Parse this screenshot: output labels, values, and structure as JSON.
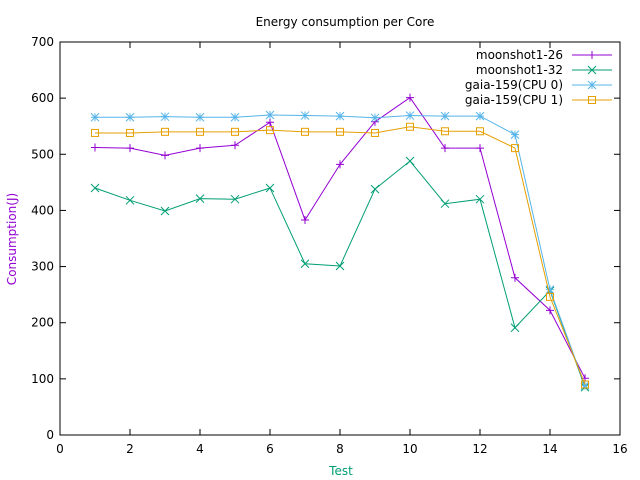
{
  "chart_data": {
    "type": "line",
    "title": "Energy consumption per Core",
    "xlabel": "Test",
    "ylabel": "Consumption(J)",
    "xlabel_color": "#009e73",
    "ylabel_color": "#9400d3",
    "xlim": [
      0,
      16
    ],
    "ylim": [
      0,
      700
    ],
    "xticks": [
      0,
      2,
      4,
      6,
      8,
      10,
      12,
      14,
      16
    ],
    "yticks": [
      0,
      100,
      200,
      300,
      400,
      500,
      600,
      700
    ],
    "grid": false,
    "legend_position": "top-right",
    "x": [
      1,
      2,
      3,
      4,
      5,
      6,
      7,
      8,
      9,
      10,
      11,
      12,
      13,
      14,
      15
    ],
    "series": [
      {
        "name": "moonshot1-26",
        "color": "#9400d3",
        "marker": "plus",
        "values": [
          512,
          511,
          498,
          511,
          516,
          557,
          383,
          482,
          558,
          601,
          511,
          511,
          280,
          222,
          101
        ]
      },
      {
        "name": "moonshot1-32",
        "color": "#009e73",
        "marker": "cross",
        "values": [
          440,
          418,
          399,
          421,
          420,
          440,
          305,
          301,
          438,
          488,
          412,
          420,
          191,
          257,
          85
        ]
      },
      {
        "name": "gaia-159(CPU 0)",
        "color": "#56b4e9",
        "marker": "star",
        "values": [
          566,
          566,
          567,
          566,
          566,
          570,
          569,
          568,
          565,
          569,
          568,
          568,
          535,
          259,
          88
        ]
      },
      {
        "name": "gaia-159(CPU 1)",
        "color": "#e69f00",
        "marker": "square",
        "values": [
          538,
          538,
          540,
          540,
          540,
          543,
          540,
          540,
          538,
          549,
          541,
          541,
          511,
          246,
          90
        ]
      }
    ]
  }
}
